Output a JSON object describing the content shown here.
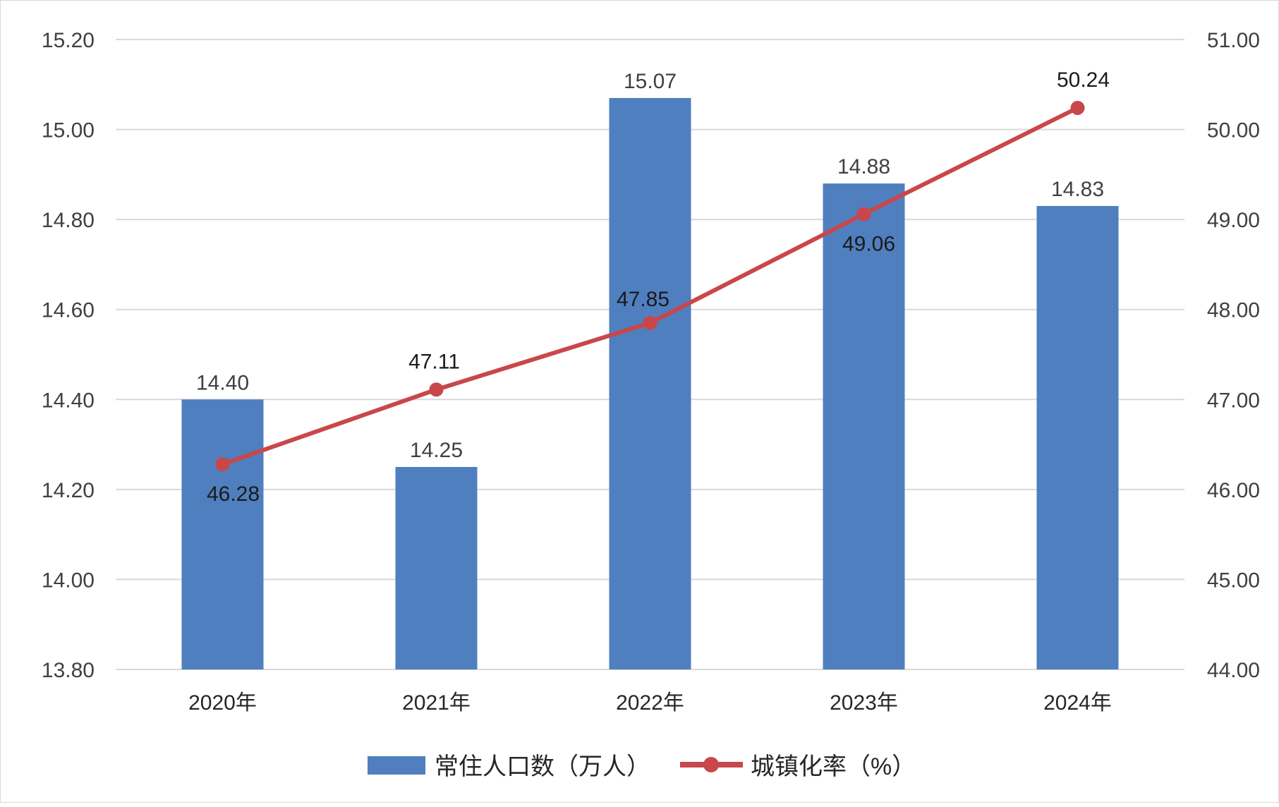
{
  "chart_data": {
    "type": "bar",
    "categories": [
      "2020年",
      "2021年",
      "2022年",
      "2023年",
      "2024年"
    ],
    "series": [
      {
        "name": "常住人口数（万人）",
        "type": "bar",
        "axis": "left",
        "values": [
          14.4,
          14.25,
          15.07,
          14.88,
          14.83
        ],
        "labels": [
          "14.40",
          "14.25",
          "15.07",
          "14.88",
          "14.83"
        ],
        "color": "#4f7fbf"
      },
      {
        "name": "城镇化率（%）",
        "type": "line",
        "axis": "right",
        "values": [
          46.28,
          47.11,
          47.85,
          49.06,
          50.24
        ],
        "labels": [
          "46.28",
          "47.11",
          "47.85",
          "49.06",
          "50.24"
        ],
        "color": "#c9474a"
      }
    ],
    "y_left": {
      "range": [
        13.8,
        15.2
      ],
      "ticks": [
        "15.20",
        "15.00",
        "14.80",
        "14.60",
        "14.40",
        "14.20",
        "14.00",
        "13.80"
      ]
    },
    "y_right": {
      "range": [
        44,
        51
      ],
      "ticks": [
        "51.00",
        "50.00",
        "49.00",
        "48.00",
        "47.00",
        "46.00",
        "45.00",
        "44.00"
      ]
    },
    "grid": true,
    "legend_position": "bottom",
    "title": "",
    "xlabel": "",
    "ylabel": ""
  }
}
